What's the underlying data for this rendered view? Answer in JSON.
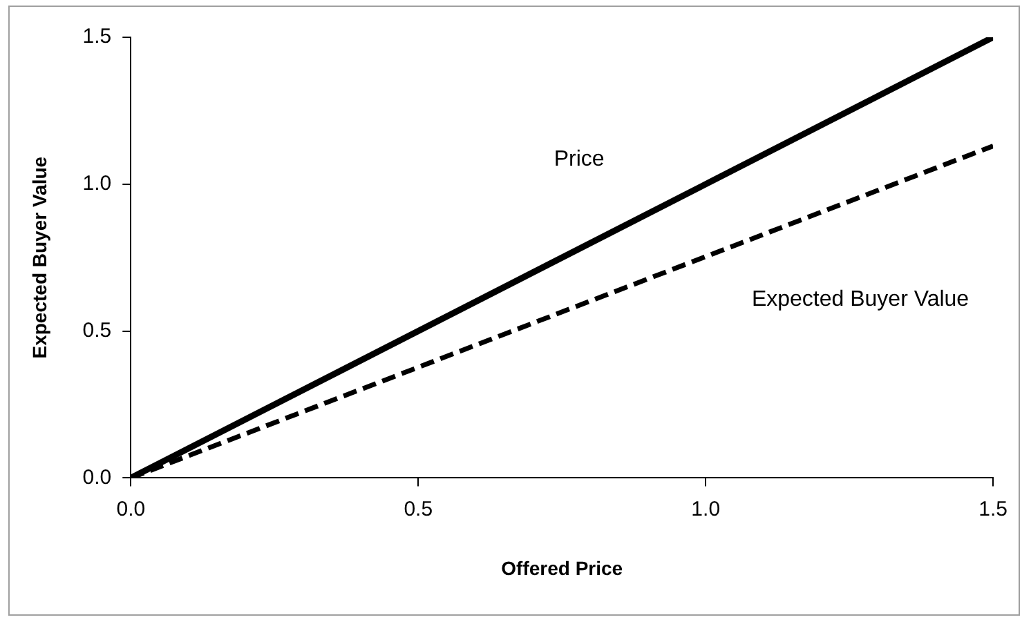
{
  "chart_data": {
    "type": "line",
    "xlabel": "Offered Price",
    "ylabel": "Expected Buyer Value",
    "x": [
      0,
      1.5
    ],
    "series": [
      {
        "name": "Price",
        "color": "#000000",
        "values": [
          0,
          1.5
        ],
        "line_style": "solid"
      },
      {
        "name": "Expected Buyer Value",
        "color": "#000000",
        "values": [
          0,
          1.13
        ],
        "line_style": "dashed"
      }
    ],
    "xlim": [
      0,
      1.5
    ],
    "ylim": [
      0,
      1.5
    ],
    "xticks": [
      {
        "value": 0,
        "label": "0.0"
      },
      {
        "value": 0.5,
        "label": "0.5"
      },
      {
        "value": 1,
        "label": "1.0"
      },
      {
        "value": 1.5,
        "label": "1.5"
      }
    ],
    "yticks": [
      {
        "value": 0,
        "label": "0.0"
      },
      {
        "value": 0.5,
        "label": "0.5"
      },
      {
        "value": 1,
        "label": "1.0"
      },
      {
        "value": 1.5,
        "label": "1.5"
      }
    ],
    "grid": false,
    "legend": false,
    "marker": "none"
  }
}
